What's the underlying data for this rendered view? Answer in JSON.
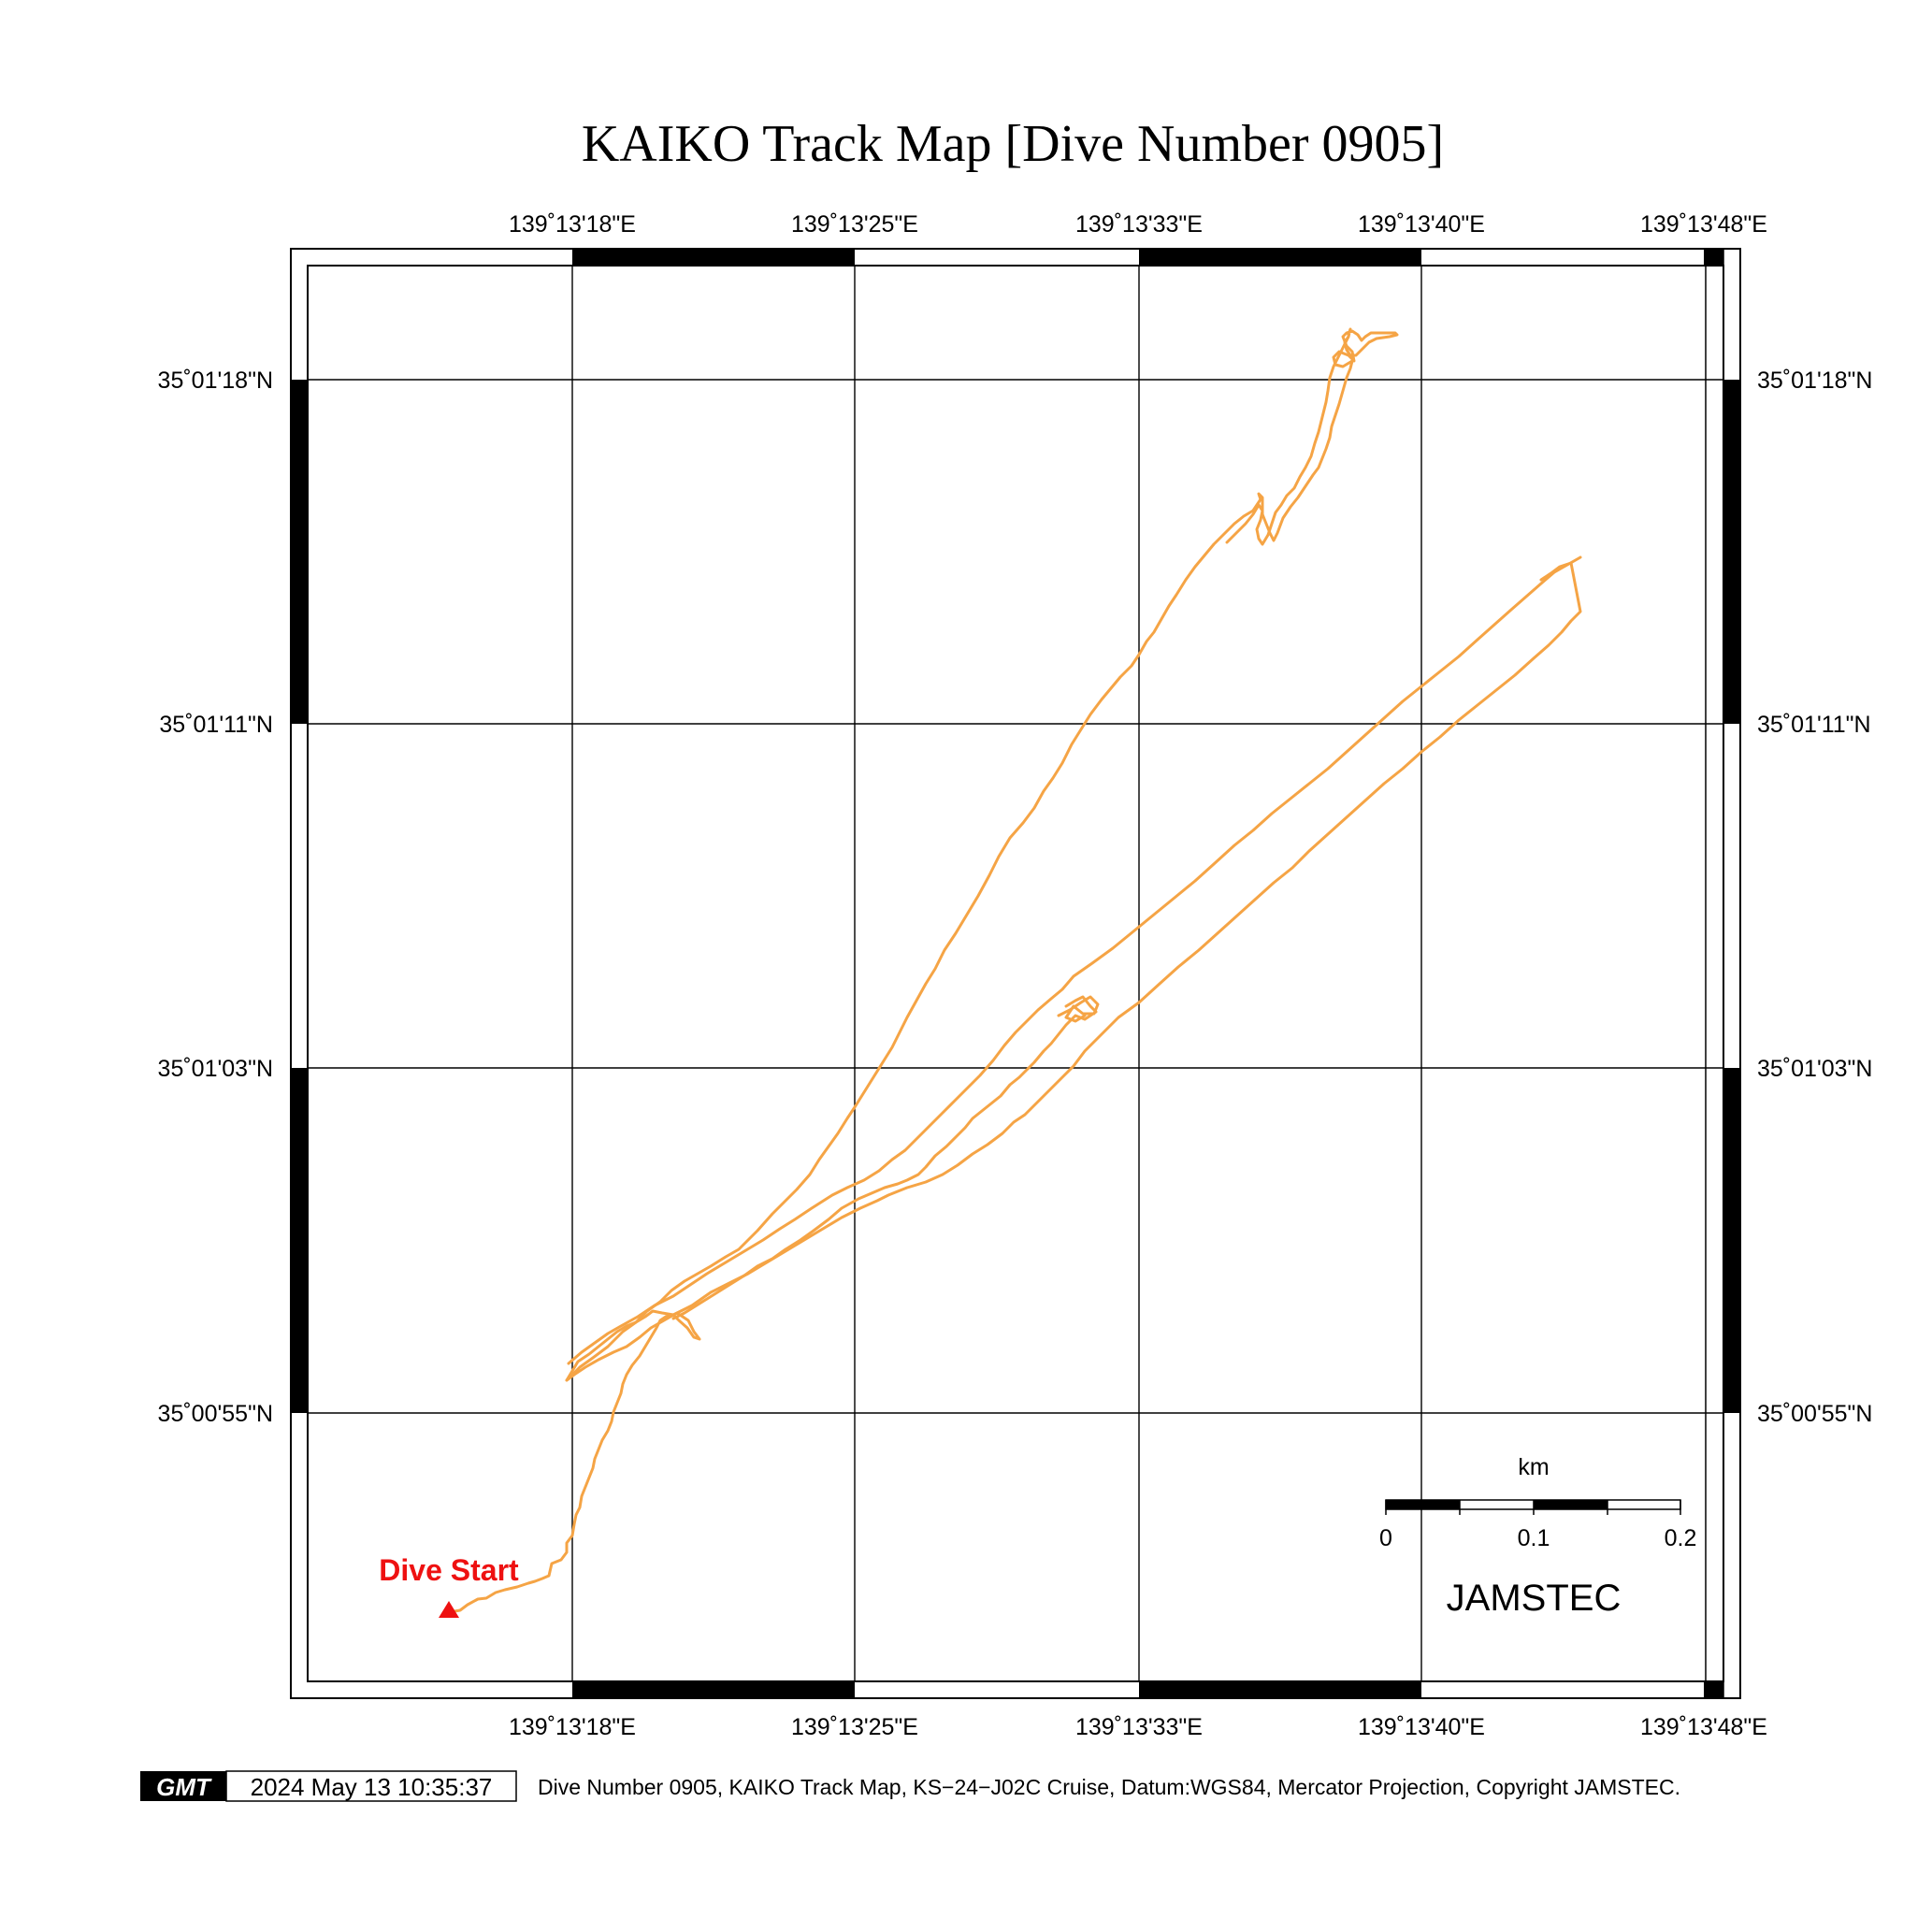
{
  "title": "KAIKO Track Map [Dive Number 0905]",
  "longitude_labels": [
    "139˚13'18\"E",
    "139˚13'25\"E",
    "139˚13'33\"E",
    "139˚13'40\"E",
    "139˚13'48\"E"
  ],
  "latitude_labels": [
    "35˚01'18\"N",
    "35˚01'11\"N",
    "35˚01'03\"N",
    "35˚00'55\"N"
  ],
  "start_label": "Dive Start",
  "scale_bar": {
    "unit": "km",
    "ticks": [
      "0",
      "0.1",
      "0.2"
    ]
  },
  "organization": "JAMSTEC",
  "footer": {
    "logo_text": "GMT",
    "timestamp": "2024 May 13 10:35:37",
    "caption": "Dive Number 0905, KAIKO Track Map, KS−24−J02C Cruise, Datum:WGS84, Mercator Projection, Copyright JAMSTEC."
  },
  "colors": {
    "track": "#f5a445",
    "start_marker": "#ee1111",
    "frame": "#000000"
  },
  "icons": {
    "start_marker": "triangle-marker",
    "logo": "gmt-logo"
  }
}
